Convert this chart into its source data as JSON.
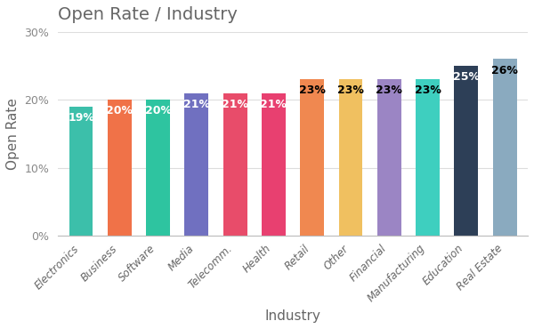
{
  "title": "Open Rate / Industry",
  "categories": [
    "Electronics",
    "Business",
    "Software",
    "Media",
    "Telecomm.",
    "Health",
    "Retail",
    "Other",
    "Financial",
    "Manufacturing",
    "Education",
    "Real Estate"
  ],
  "values": [
    19,
    20,
    20,
    21,
    21,
    21,
    23,
    23,
    23,
    23,
    25,
    26
  ],
  "bar_colors": [
    "#3cbfaa",
    "#f07248",
    "#2ec4a0",
    "#7070c0",
    "#e84c6a",
    "#e84070",
    "#f08850",
    "#f0c060",
    "#9b85c4",
    "#3ecfbf",
    "#2d3f57",
    "#8aaabf"
  ],
  "ylabel": "Open Rate",
  "xlabel": "Industry",
  "ylim": [
    0,
    30
  ],
  "yticks": [
    0,
    10,
    20,
    30
  ],
  "ytick_labels": [
    "0%",
    "10%",
    "20%",
    "30%"
  ],
  "label_colors": [
    "white",
    "white",
    "white",
    "white",
    "white",
    "white",
    "black",
    "black",
    "black",
    "black",
    "white",
    "black"
  ],
  "title_fontsize": 14,
  "axis_label_fontsize": 11,
  "bar_label_fontsize": 9,
  "background_color": "#ffffff",
  "title_color": "#666666",
  "axis_color": "#666666",
  "tick_color": "#888888"
}
